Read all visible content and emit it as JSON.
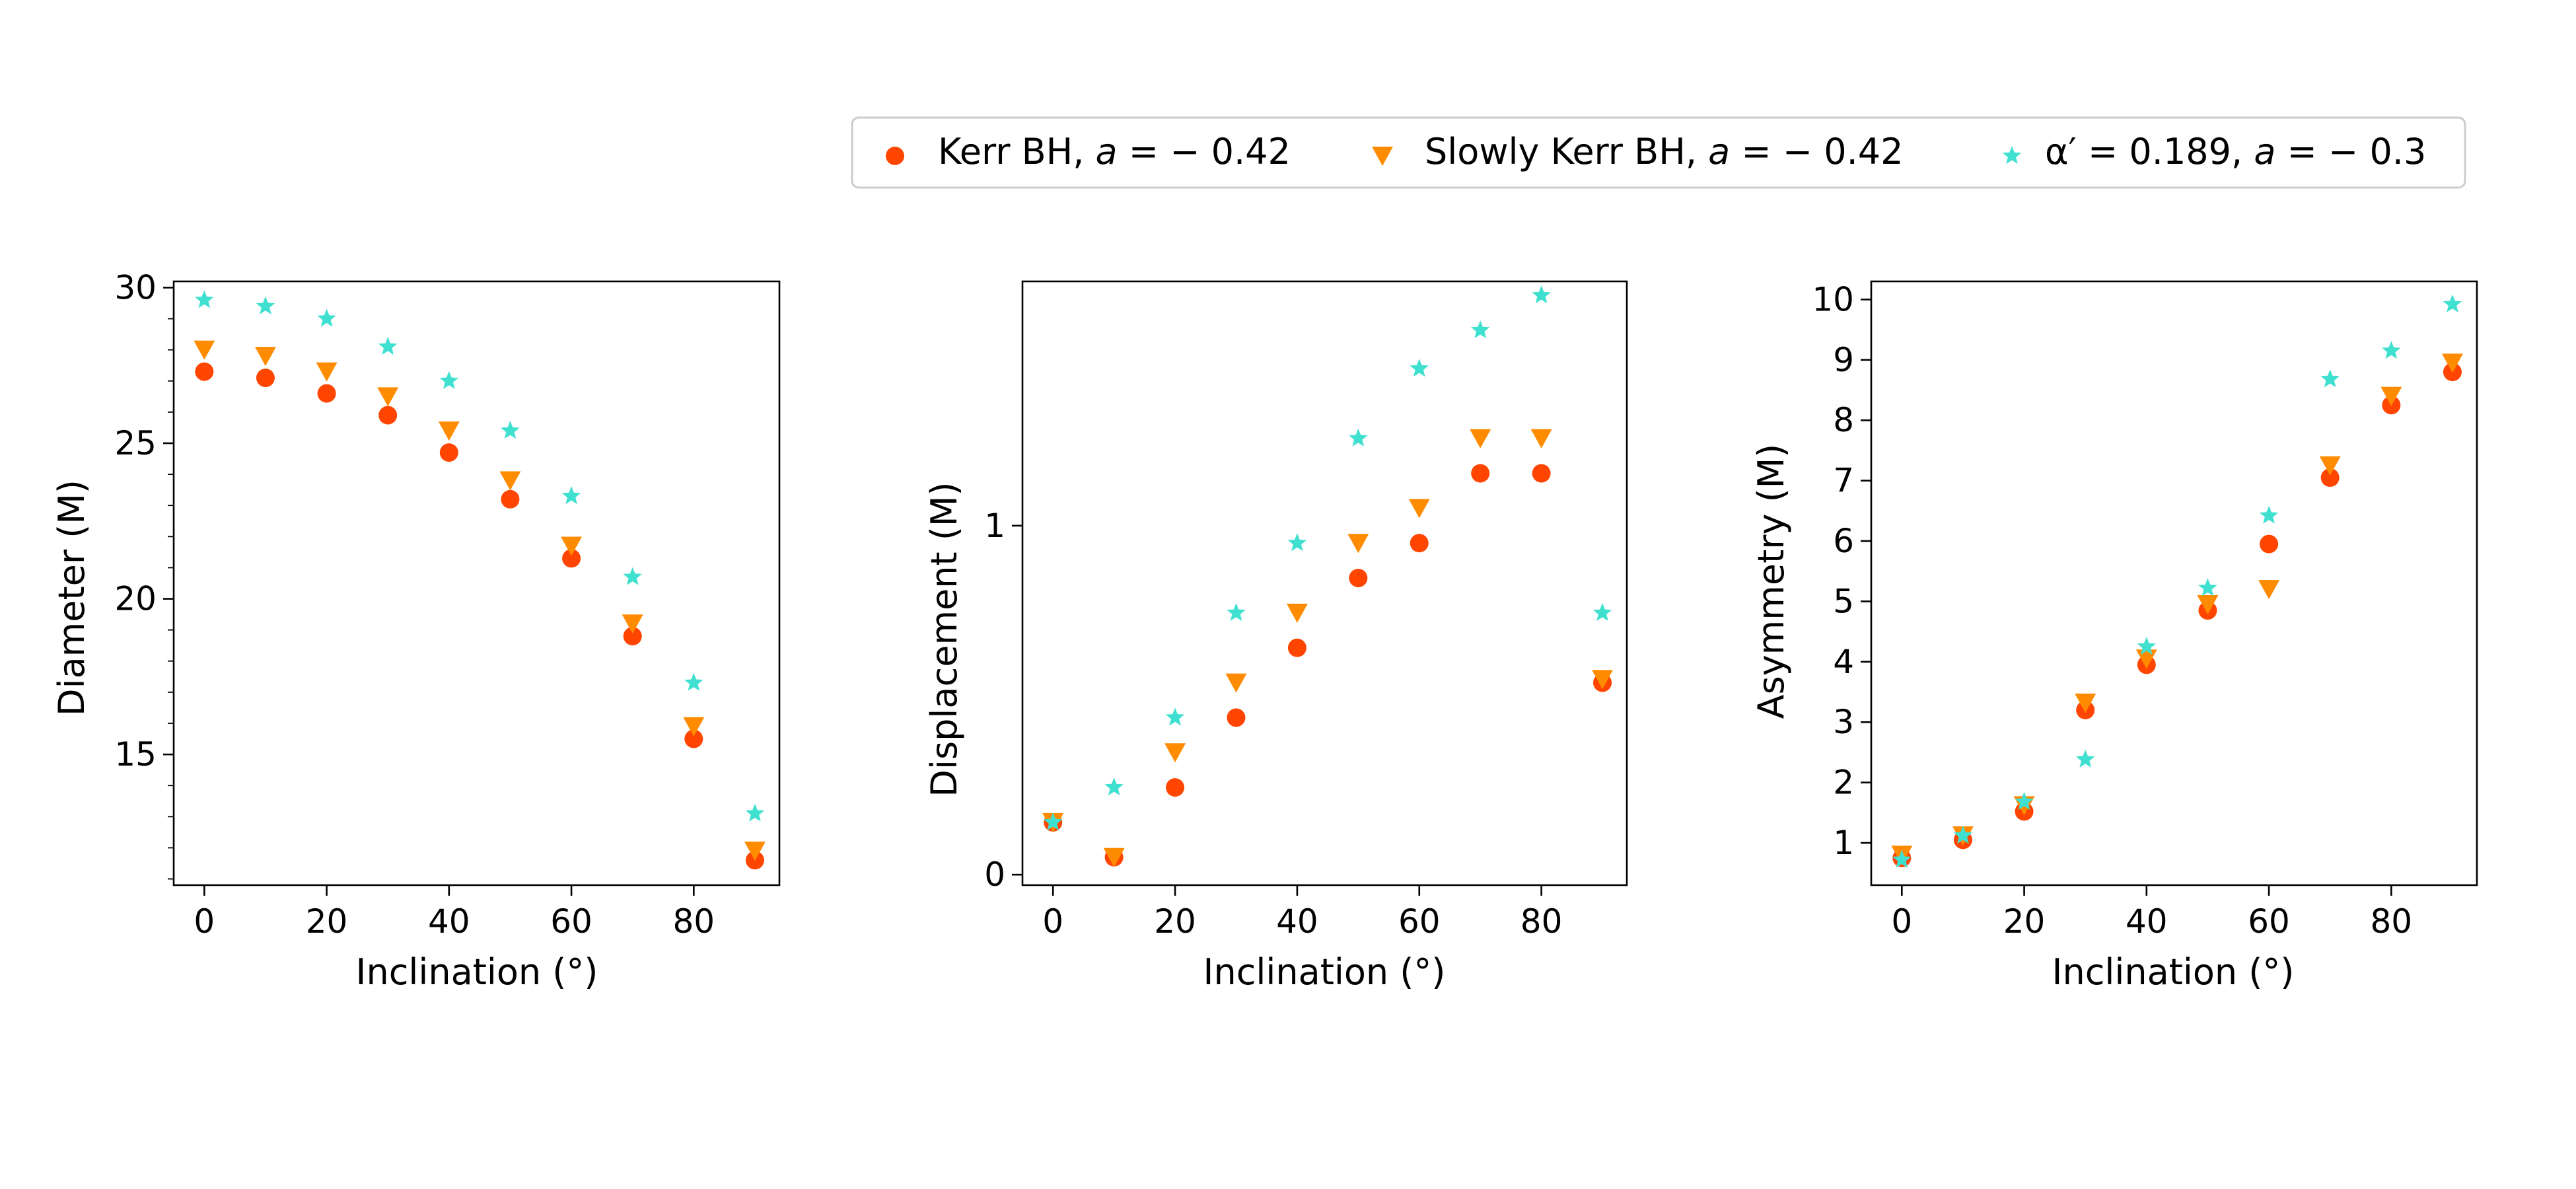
{
  "chart_data": [
    {
      "type": "scatter",
      "panel": "diameter",
      "xlabel": "Inclination (°)",
      "ylabel": "Diameter (M)",
      "xlim": [
        -5,
        94
      ],
      "ylim": [
        10.8,
        30.2
      ],
      "xticks": [
        0,
        20,
        40,
        60,
        80
      ],
      "yticks": [
        15,
        20,
        25,
        30
      ],
      "yminor": [
        11,
        12,
        13,
        14,
        16,
        17,
        18,
        19,
        21,
        22,
        23,
        24,
        26,
        27,
        28,
        29
      ],
      "x": [
        0,
        10,
        20,
        30,
        40,
        50,
        60,
        70,
        80,
        90
      ],
      "series": [
        {
          "name": "kerr",
          "values": [
            27.3,
            27.1,
            26.6,
            25.9,
            24.7,
            23.2,
            21.3,
            18.8,
            15.5,
            11.6
          ]
        },
        {
          "name": "slowly",
          "values": [
            28.0,
            27.8,
            27.3,
            26.5,
            25.4,
            23.8,
            21.7,
            19.2,
            15.9,
            11.9
          ]
        },
        {
          "name": "alpha",
          "values": [
            29.6,
            29.4,
            29.0,
            28.1,
            27.0,
            25.4,
            23.3,
            20.7,
            17.3,
            13.1
          ]
        }
      ]
    },
    {
      "type": "scatter",
      "panel": "displacement",
      "xlabel": "Inclination (°)",
      "ylabel": "Displacement (M)",
      "xlim": [
        -5,
        94
      ],
      "ylim": [
        -0.03,
        1.7
      ],
      "xticks": [
        0,
        20,
        40,
        60,
        80
      ],
      "yticks": [
        0,
        1
      ],
      "yminor": [],
      "x": [
        0,
        10,
        20,
        30,
        40,
        50,
        60,
        70,
        80,
        90
      ],
      "series": [
        {
          "name": "kerr",
          "values": [
            0.15,
            0.05,
            0.25,
            0.45,
            0.65,
            0.85,
            0.95,
            1.15,
            1.15,
            0.55
          ]
        },
        {
          "name": "slowly",
          "values": [
            0.15,
            0.05,
            0.35,
            0.55,
            0.75,
            0.95,
            1.05,
            1.25,
            1.25,
            0.56
          ]
        },
        {
          "name": "alpha",
          "values": [
            0.15,
            0.25,
            0.45,
            0.75,
            0.95,
            1.25,
            1.45,
            1.56,
            1.66,
            0.75
          ]
        }
      ]
    },
    {
      "type": "scatter",
      "panel": "asymmetry",
      "xlabel": "Inclination (°)",
      "ylabel": "Asymmetry (M)",
      "xlim": [
        -5,
        94
      ],
      "ylim": [
        0.3,
        10.3
      ],
      "xticks": [
        0,
        20,
        40,
        60,
        80
      ],
      "yticks": [
        1,
        2,
        3,
        4,
        5,
        6,
        7,
        8,
        9,
        10
      ],
      "yminor": [],
      "x": [
        0,
        10,
        20,
        30,
        40,
        50,
        60,
        70,
        80,
        90
      ],
      "series": [
        {
          "name": "kerr",
          "values": [
            0.75,
            1.05,
            1.52,
            3.2,
            3.95,
            4.85,
            5.95,
            7.05,
            8.25,
            8.8
          ]
        },
        {
          "name": "slowly",
          "values": [
            0.8,
            1.12,
            1.62,
            3.32,
            4.05,
            4.95,
            5.2,
            7.25,
            8.4,
            8.95
          ]
        },
        {
          "name": "alpha",
          "values": [
            0.72,
            1.12,
            1.68,
            2.38,
            4.25,
            5.22,
            6.42,
            8.68,
            9.15,
            9.92
          ]
        }
      ]
    }
  ],
  "legend": {
    "placement": "top-right",
    "entries": [
      {
        "series": "kerr",
        "marker": "circle",
        "color": "#ff4500",
        "prefix": "Kerr BH, ",
        "var": "a",
        "suffix": " = − 0.42"
      },
      {
        "series": "slowly",
        "marker": "triangle-down",
        "color": "#ff8c00",
        "prefix": "Slowly Kerr BH, ",
        "var": "a",
        "suffix": " = − 0.42"
      },
      {
        "series": "alpha",
        "marker": "star",
        "color": "#40e0d0",
        "prefix": "α′ = 0.189, ",
        "var": "a",
        "suffix": " = − 0.3"
      }
    ]
  },
  "colors": {
    "kerr": "#ff4500",
    "slowly": "#ff8c00",
    "alpha": "#40e0d0"
  }
}
